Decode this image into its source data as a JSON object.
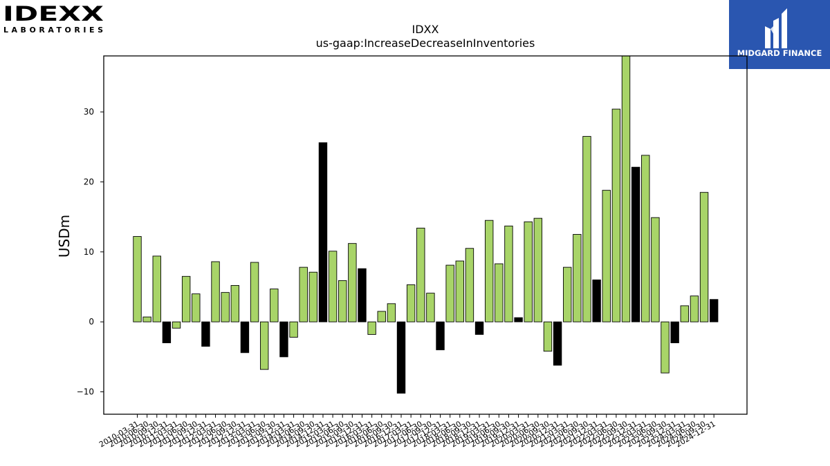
{
  "logos": {
    "left_brand": "IDEXX",
    "left_sub": "LABORATORIES",
    "right_brand": "MIDGARD FINANCE",
    "right_color": "#2a56b0"
  },
  "chart_data": {
    "type": "bar",
    "title": "IDXX",
    "subtitle": "us-gaap:IncreaseDecreaseInInventories",
    "xlabel": "",
    "ylabel": "USDm",
    "ylim": [
      -13.2,
      38
    ],
    "yticks": [
      -10,
      0,
      10,
      20,
      30
    ],
    "grid": false,
    "colors": {
      "quarter": "#a8d468",
      "annual": "#000000",
      "edge": "#000000"
    },
    "categories": [
      "2010-03-31",
      "2010-06-30",
      "2010-09-30",
      "2010-12-31",
      "2011-03-31",
      "2011-06-30",
      "2011-09-30",
      "2011-12-31",
      "2012-03-31",
      "2012-06-30",
      "2012-09-30",
      "2012-12-31",
      "2013-03-31",
      "2013-06-30",
      "2013-09-30",
      "2013-12-31",
      "2014-03-31",
      "2014-06-30",
      "2014-09-30",
      "2014-12-31",
      "2015-03-31",
      "2015-06-30",
      "2015-09-30",
      "2015-12-31",
      "2016-03-31",
      "2016-06-30",
      "2016-09-30",
      "2016-12-31",
      "2017-03-31",
      "2017-06-30",
      "2017-09-30",
      "2017-12-31",
      "2018-03-31",
      "2018-06-30",
      "2018-09-30",
      "2018-12-31",
      "2019-03-31",
      "2019-06-30",
      "2019-09-30",
      "2019-12-31",
      "2020-03-31",
      "2020-06-30",
      "2020-09-30",
      "2020-12-31",
      "2021-03-31",
      "2021-06-30",
      "2021-09-30",
      "2021-12-31",
      "2022-03-31",
      "2022-06-30",
      "2022-09-30",
      "2022-12-31",
      "2023-03-31",
      "2023-06-30",
      "2023-09-30",
      "2023-12-31",
      "2024-03-31",
      "2024-06-30",
      "2024-09-30",
      "2024-12-31"
    ],
    "values": [
      12.2,
      0.7,
      9.4,
      -3.0,
      -0.9,
      6.5,
      4.0,
      -3.5,
      8.6,
      4.2,
      5.2,
      -4.4,
      8.5,
      -6.8,
      4.7,
      -5.0,
      -2.2,
      7.8,
      7.1,
      25.6,
      10.1,
      5.9,
      11.2,
      7.6,
      -1.8,
      1.5,
      2.6,
      -10.2,
      5.3,
      13.4,
      4.1,
      -4.0,
      8.1,
      8.7,
      10.5,
      -1.8,
      14.5,
      8.3,
      13.7,
      0.6,
      14.3,
      14.8,
      -4.2,
      -6.2,
      7.8,
      12.5,
      26.5,
      6.0,
      18.8,
      30.4,
      38.0,
      22.1,
      23.8,
      14.9,
      -7.3,
      -3.0,
      2.3,
      3.7,
      18.5,
      3.2
    ],
    "annual": [
      false,
      false,
      false,
      true,
      false,
      false,
      false,
      true,
      false,
      false,
      false,
      true,
      false,
      false,
      false,
      true,
      false,
      false,
      false,
      true,
      false,
      false,
      false,
      true,
      false,
      false,
      false,
      true,
      false,
      false,
      false,
      true,
      false,
      false,
      false,
      true,
      false,
      false,
      false,
      true,
      false,
      false,
      false,
      true,
      false,
      false,
      false,
      true,
      false,
      false,
      false,
      true,
      false,
      false,
      false,
      true,
      false,
      false,
      false,
      true
    ]
  }
}
